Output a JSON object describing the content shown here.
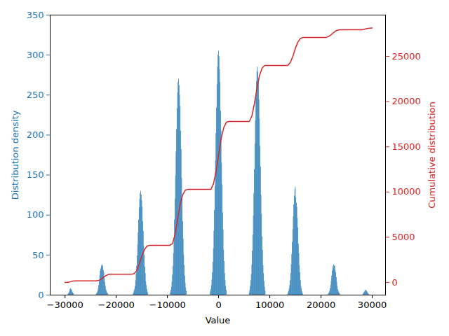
{
  "chart_data": {
    "type": "histogram",
    "xlabel": "Value",
    "ylabel": "Distribution density",
    "y2label": "Cumulative distribution",
    "color": "#1f77b4",
    "grid": false,
    "xlim": [
      -32900,
      32600
    ],
    "xticks": [
      -30000,
      -20000,
      -10000,
      0,
      10000,
      20000,
      30000
    ],
    "ylim": [
      0,
      350
    ],
    "yticks": [
      0,
      50,
      100,
      150,
      200,
      250,
      300,
      350
    ],
    "y2lim": [
      -1400,
      29570
    ],
    "y2ticks": [
      0,
      5000,
      10000,
      15000,
      20000,
      25000
    ],
    "bins": [
      -29400,
      -29300,
      -29200,
      -29100,
      -29000,
      -28900,
      -28800,
      -28700,
      -28600,
      -28500,
      -28400,
      -28300,
      -28200,
      -23900,
      -23800,
      -23700,
      -23600,
      -23500,
      -23400,
      -23300,
      -23200,
      -23100,
      -23000,
      -22900,
      -22800,
      -22700,
      -22600,
      -22500,
      -22400,
      -22300,
      -22200,
      -22100,
      -22000,
      -21900,
      -21800,
      -21700,
      -21600,
      -21500,
      -16700,
      -16600,
      -16500,
      -16400,
      -16300,
      -16200,
      -16100,
      -16000,
      -15900,
      -15800,
      -15700,
      -15600,
      -15500,
      -15400,
      -15300,
      -15200,
      -15100,
      -15000,
      -14900,
      -14800,
      -14700,
      -14600,
      -14500,
      -14400,
      -14300,
      -14200,
      -14100,
      -14000,
      -13900,
      -13800,
      -13700,
      -9400,
      -9300,
      -9200,
      -9100,
      -9000,
      -8900,
      -8800,
      -8700,
      -8600,
      -8500,
      -8400,
      -8300,
      -8200,
      -8100,
      -8000,
      -7900,
      -7800,
      -7700,
      -7600,
      -7500,
      -7400,
      -7300,
      -7200,
      -7100,
      -7000,
      -6900,
      -6800,
      -6700,
      -6600,
      -6500,
      -6400,
      -6300,
      -6200,
      -1600,
      -1500,
      -1400,
      -1300,
      -1200,
      -1100,
      -1000,
      -900,
      -800,
      -700,
      -600,
      -500,
      -400,
      -300,
      -200,
      -100,
      0,
      100,
      200,
      300,
      400,
      500,
      600,
      700,
      800,
      900,
      1000,
      1100,
      1200,
      1300,
      1400,
      1500,
      1600,
      6000,
      6100,
      6200,
      6300,
      6400,
      6500,
      6600,
      6700,
      6800,
      6900,
      7000,
      7100,
      7200,
      7300,
      7400,
      7500,
      7600,
      7700,
      7800,
      7900,
      8000,
      8100,
      8200,
      8300,
      8400,
      8500,
      8600,
      8700,
      8800,
      8900,
      9000,
      9100,
      9200,
      13500,
      13600,
      13700,
      13800,
      13900,
      14000,
      14100,
      14200,
      14300,
      14400,
      14500,
      14600,
      14700,
      14800,
      14900,
      15000,
      15100,
      15200,
      15300,
      15400,
      15500,
      15600,
      15700,
      15800,
      15900,
      16000,
      16100,
      16200,
      16300,
      16400,
      16500,
      21400,
      21500,
      21600,
      21700,
      21800,
      21900,
      22000,
      22100,
      22200,
      22300,
      22400,
      22500,
      22600,
      22700,
      22800,
      22900,
      23000,
      23100,
      23200,
      23300,
      23400,
      23500,
      23600,
      23700,
      23800,
      28200,
      28300,
      28400,
      28500,
      28600,
      28700,
      28800,
      28900,
      29000,
      29100,
      29200,
      29300,
      29400
    ],
    "values": [
      1,
      2,
      3,
      5,
      7,
      8,
      7,
      6,
      4,
      3,
      2,
      1,
      0,
      1,
      2,
      3,
      5,
      8,
      12,
      17,
      24,
      30,
      33,
      36,
      38,
      35,
      37,
      31,
      28,
      22,
      16,
      11,
      7,
      5,
      3,
      2,
      1,
      0,
      1,
      3,
      5,
      7,
      11,
      18,
      26,
      36,
      49,
      63,
      78,
      94,
      109,
      120,
      127,
      130,
      125,
      118,
      110,
      92,
      80,
      61,
      50,
      35,
      27,
      17,
      12,
      7,
      4,
      2,
      0,
      3,
      6,
      10,
      16,
      25,
      36,
      52,
      71,
      94,
      120,
      149,
      179,
      207,
      233,
      253,
      266,
      270,
      262,
      250,
      236,
      205,
      182,
      146,
      122,
      92,
      70,
      50,
      37,
      24,
      15,
      9,
      5,
      0,
      4,
      7,
      12,
      19,
      28,
      41,
      58,
      80,
      106,
      136,
      168,
      202,
      234,
      263,
      285,
      300,
      305,
      298,
      282,
      266,
      230,
      205,
      165,
      138,
      103,
      82,
      56,
      42,
      27,
      18,
      11,
      6,
      0,
      3,
      6,
      11,
      18,
      26,
      38,
      55,
      75,
      99,
      127,
      157,
      189,
      218,
      246,
      267,
      280,
      285,
      278,
      270,
      244,
      220,
      186,
      160,
      125,
      101,
      73,
      56,
      37,
      27,
      17,
      10,
      5,
      0,
      1,
      3,
      5,
      8,
      12,
      18,
      27,
      38,
      51,
      66,
      82,
      98,
      113,
      124,
      132,
      135,
      122,
      115,
      110,
      96,
      84,
      64,
      52,
      37,
      28,
      18,
      11,
      8,
      4,
      2,
      0,
      1,
      2,
      3,
      5,
      8,
      12,
      17,
      24,
      30,
      36,
      33,
      38,
      36,
      37,
      31,
      28,
      22,
      16,
      11,
      7,
      5,
      3,
      2,
      1,
      0,
      1,
      2,
      3,
      4,
      6,
      5,
      6,
      5,
      4,
      3,
      2,
      1
    ],
    "series": [
      {
        "type": "line",
        "axis": "y2",
        "color": "#d62728",
        "x": [
          -30000,
          -29500,
          -29000,
          -28500,
          -28000,
          -24000,
          -23500,
          -23000,
          -22500,
          -22000,
          -21500,
          -21000,
          -17000,
          -16500,
          -16000,
          -15500,
          -15000,
          -14500,
          -14000,
          -13500,
          -9500,
          -9000,
          -8500,
          -8000,
          -7500,
          -7000,
          -6500,
          -6000,
          -1500,
          -1000,
          -500,
          0,
          500,
          1000,
          1500,
          2000,
          6000,
          6500,
          7000,
          7500,
          8000,
          8500,
          9000,
          13500,
          14000,
          14500,
          15000,
          15500,
          16000,
          16500,
          21000,
          21500,
          22000,
          22500,
          23000,
          23500,
          24000,
          28000,
          28500,
          29000,
          29500,
          30000
        ],
        "values": [
          0,
          10,
          60,
          140,
          160,
          160,
          200,
          330,
          560,
          760,
          880,
          900,
          900,
          960,
          1300,
          2000,
          2900,
          3600,
          4000,
          4100,
          4100,
          4300,
          5300,
          7000,
          8700,
          9700,
          10200,
          10300,
          10300,
          10900,
          12300,
          14100,
          15900,
          17100,
          17700,
          17800,
          17800,
          18400,
          19800,
          21500,
          22900,
          23700,
          24000,
          24000,
          24300,
          25000,
          25900,
          26600,
          27000,
          27100,
          27100,
          27200,
          27400,
          27650,
          27850,
          27920,
          27950,
          27950,
          28000,
          28080,
          28120,
          28130
        ]
      }
    ]
  }
}
